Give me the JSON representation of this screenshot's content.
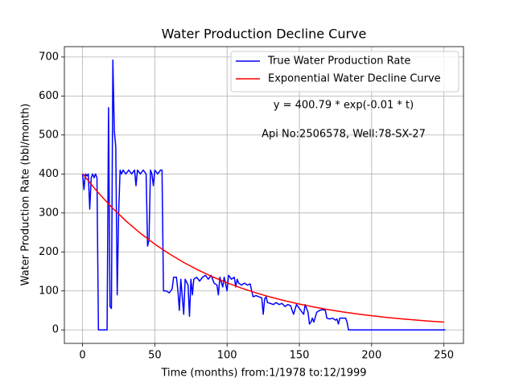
{
  "chart_data": {
    "type": "line",
    "title": "Water Production Decline Curve",
    "xlabel": "Time (months) from:1/1978 to:12/1999",
    "ylabel": "Water Production Rate (bbl/month)",
    "annotations": [
      "y = 400.79 * exp(-0.01 * t)",
      "Api No:2506578, Well:78-SX-27"
    ],
    "xlim": [
      -12.55,
      263.55
    ],
    "ylim": [
      -34.6,
      726.6
    ],
    "xticks": [
      0,
      50,
      100,
      150,
      200,
      250
    ],
    "yticks": [
      0,
      100,
      200,
      300,
      400,
      500,
      600,
      700
    ],
    "grid": true,
    "legend": "upper right",
    "series": [
      {
        "name": "True Water Production Rate",
        "color": "#0000ff",
        "x": [
          0,
          1,
          2,
          3,
          4,
          5,
          6,
          7,
          8,
          9,
          10,
          11,
          17,
          18,
          19,
          20,
          21,
          22,
          23,
          24,
          25,
          26,
          27,
          28,
          30,
          32,
          34,
          36,
          37,
          38,
          40,
          42,
          44,
          45,
          46,
          47,
          48,
          49,
          50,
          52,
          54,
          55,
          56,
          58,
          60,
          62,
          63,
          65,
          66,
          67,
          68,
          70,
          71,
          73,
          74,
          75,
          76,
          77,
          79,
          81,
          83,
          85,
          87,
          89,
          90,
          91,
          93,
          94,
          95,
          97,
          98,
          100,
          101,
          103,
          105,
          106,
          107,
          108,
          110,
          112,
          114,
          116,
          117,
          118,
          120,
          122,
          124,
          125,
          126,
          127,
          128,
          130,
          132,
          134,
          136,
          138,
          140,
          142,
          144,
          145,
          146,
          148,
          150,
          152,
          153,
          154,
          156,
          157,
          158,
          159,
          160,
          162,
          164,
          166,
          168,
          169,
          171,
          173,
          175,
          176,
          177,
          178,
          182,
          183,
          184,
          251
        ],
        "values": [
          400,
          360,
          400,
          395,
          400,
          310,
          390,
          400,
          390,
          400,
          390,
          0,
          0,
          570,
          60,
          55,
          692,
          510,
          470,
          90,
          300,
          410,
          400,
          410,
          400,
          410,
          400,
          410,
          370,
          410,
          400,
          410,
          400,
          215,
          230,
          410,
          400,
          370,
          410,
          400,
          410,
          410,
          100,
          100,
          95,
          105,
          135,
          135,
          100,
          50,
          130,
          40,
          130,
          115,
          35,
          130,
          90,
          130,
          135,
          125,
          135,
          140,
          130,
          140,
          130,
          120,
          115,
          90,
          135,
          110,
          135,
          100,
          140,
          130,
          135,
          110,
          130,
          120,
          115,
          120,
          115,
          118,
          100,
          85,
          88,
          85,
          82,
          40,
          80,
          85,
          70,
          68,
          65,
          70,
          65,
          68,
          60,
          65,
          62,
          50,
          40,
          65,
          55,
          45,
          40,
          65,
          45,
          15,
          20,
          30,
          20,
          45,
          50,
          52,
          50,
          30,
          28,
          30,
          25,
          28,
          15,
          30,
          30,
          20,
          0,
          0
        ]
      },
      {
        "name": "Exponential Water Decline Curve",
        "color": "#ff0000",
        "x": [
          0,
          10,
          20,
          30,
          40,
          50,
          60,
          70,
          80,
          90,
          100,
          110,
          120,
          130,
          140,
          150,
          160,
          170,
          180,
          190,
          200,
          210,
          220,
          230,
          240,
          250
        ],
        "values": [
          400.79,
          355.5,
          315.3,
          279.6,
          248.0,
          220.0,
          195.1,
          173.0,
          153.5,
          136.1,
          120.7,
          107.1,
          95.0,
          84.2,
          74.7,
          66.3,
          58.8,
          52.1,
          46.2,
          41.0,
          36.4,
          32.3,
          28.6,
          25.4,
          22.5,
          20.0
        ]
      }
    ]
  }
}
